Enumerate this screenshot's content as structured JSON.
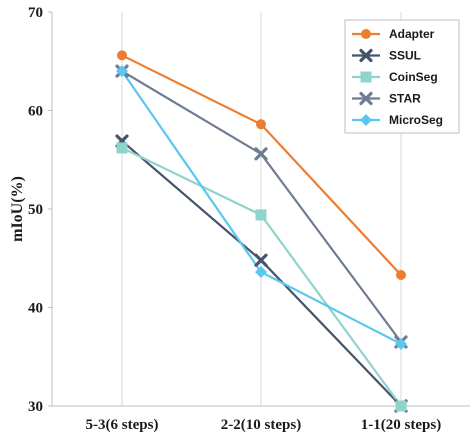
{
  "chart_data": {
    "type": "line",
    "title": "",
    "xlabel": "",
    "ylabel": "mIoU(%)",
    "categories": [
      "5-3(6 steps)",
      "2-2(10 steps)",
      "1-1(20 steps)"
    ],
    "ylim": [
      30,
      70
    ],
    "yticks": [
      "30",
      "40",
      "50",
      "60",
      "70"
    ],
    "grid": "vertical",
    "legend": "top-right",
    "series": [
      {
        "name": "Adapter",
        "values": [
          65.6,
          58.6,
          43.3
        ],
        "color": "#ED7D31",
        "marker": "circle"
      },
      {
        "name": "SSUL",
        "values": [
          56.9,
          44.8,
          30.0
        ],
        "color": "#44546A",
        "marker": "x"
      },
      {
        "name": "CoinSeg",
        "values": [
          56.2,
          49.4,
          30.0
        ],
        "color": "#8FD4CC",
        "marker": "square"
      },
      {
        "name": "STAR",
        "values": [
          64.0,
          55.6,
          36.5
        ],
        "color": "#6F7D92",
        "marker": "x"
      },
      {
        "name": "MicroSeg",
        "values": [
          64.0,
          43.6,
          36.3
        ],
        "color": "#5BC7F0",
        "marker": "diamond"
      }
    ]
  }
}
